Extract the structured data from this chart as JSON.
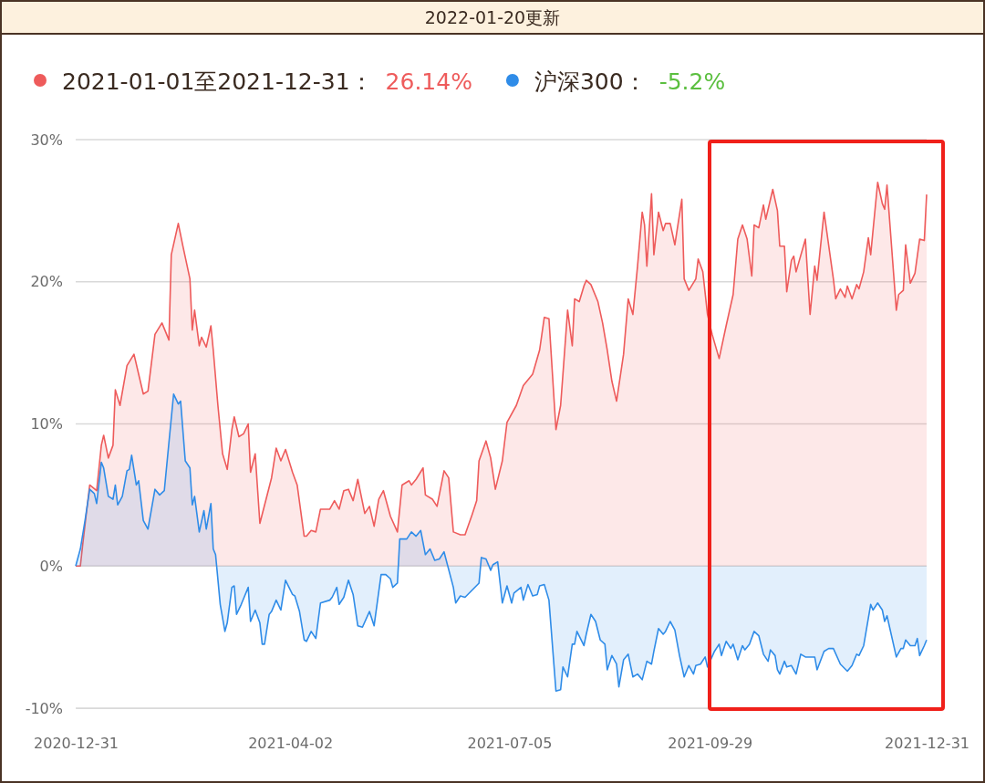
{
  "chart_data": {
    "type": "area",
    "title": "2022-01-20更新",
    "annotations": [
      "26.14%",
      "-5.2%"
    ],
    "xlim": [
      "2020-12-31",
      "2021-12-31"
    ],
    "xticks": [
      "2020-12-31",
      "2021-04-02",
      "2021-07-05",
      "2021-09-29",
      "2021-12-31"
    ],
    "ylim": [
      -10,
      30
    ],
    "yticks": [
      {
        "value": -10,
        "label": "-10%"
      },
      {
        "value": 0,
        "label": "0%"
      },
      {
        "value": 10,
        "label": "10%"
      },
      {
        "value": 20,
        "label": "20%"
      },
      {
        "value": 30,
        "label": "30%"
      }
    ],
    "grid": "y",
    "legend": "top left",
    "line_style": "solid",
    "series": [
      {
        "name": "2021-01-01至2021-12-31：",
        "color": "#ee5b5b",
        "x": [
          "2020-12-31",
          "2021-01-02",
          "2021-01-03",
          "2021-01-06",
          "2021-01-09",
          "2021-01-11",
          "2021-01-12",
          "2021-01-14",
          "2021-01-16",
          "2021-01-17",
          "2021-01-19",
          "2021-01-22",
          "2021-01-25",
          "2021-01-27",
          "2021-01-29",
          "2021-01-31",
          "2021-02-03",
          "2021-02-06",
          "2021-02-09",
          "2021-02-10",
          "2021-02-13",
          "2021-02-15",
          "2021-02-18",
          "2021-02-19",
          "2021-02-20",
          "2021-02-22",
          "2021-02-23",
          "2021-02-25",
          "2021-02-27",
          "2021-02-28",
          "2021-03-02",
          "2021-03-04",
          "2021-03-06",
          "2021-03-08",
          "2021-03-09",
          "2021-03-11",
          "2021-03-13",
          "2021-03-15",
          "2021-03-16",
          "2021-03-18",
          "2021-03-20",
          "2021-03-25",
          "2021-03-27",
          "2021-03-29",
          "2021-03-31",
          "2021-04-03",
          "2021-04-05",
          "2021-04-08",
          "2021-04-09",
          "2021-04-11",
          "2021-04-13",
          "2021-04-15",
          "2021-04-19",
          "2021-04-21",
          "2021-04-23",
          "2021-04-25",
          "2021-04-27",
          "2021-04-29",
          "2021-05-01",
          "2021-05-04",
          "2021-05-06",
          "2021-05-08",
          "2021-05-10",
          "2021-05-12",
          "2021-05-15",
          "2021-05-18",
          "2021-05-20",
          "2021-05-23",
          "2021-05-24",
          "2021-05-26",
          "2021-05-29",
          "2021-05-30",
          "2021-06-02",
          "2021-06-04",
          "2021-06-07",
          "2021-06-09",
          "2021-06-11",
          "2021-06-14",
          "2021-06-16",
          "2021-06-19",
          "2021-06-21",
          "2021-06-22",
          "2021-06-25",
          "2021-06-27",
          "2021-06-29",
          "2021-07-02",
          "2021-07-04",
          "2021-07-08",
          "2021-07-11",
          "2021-07-15",
          "2021-07-18",
          "2021-07-20",
          "2021-07-22",
          "2021-07-25",
          "2021-07-27",
          "2021-07-28",
          "2021-07-30",
          "2021-08-01",
          "2021-08-02",
          "2021-08-04",
          "2021-08-06",
          "2021-08-07",
          "2021-08-09",
          "2021-08-12",
          "2021-08-14",
          "2021-08-16",
          "2021-08-18",
          "2021-08-20",
          "2021-08-23",
          "2021-08-25",
          "2021-08-27",
          "2021-08-29",
          "2021-08-31",
          "2021-09-01",
          "2021-09-02",
          "2021-09-04",
          "2021-09-05",
          "2021-09-07",
          "2021-09-09",
          "2021-09-10",
          "2021-09-12",
          "2021-09-14",
          "2021-09-17",
          "2021-09-18",
          "2021-09-20",
          "2021-09-23",
          "2021-09-24",
          "2021-09-26",
          "2021-09-28",
          "2021-09-30",
          "2021-10-03",
          "2021-10-06",
          "2021-10-09",
          "2021-10-11",
          "2021-10-13",
          "2021-10-15",
          "2021-10-17",
          "2021-10-18",
          "2021-10-20",
          "2021-10-22",
          "2021-10-23",
          "2021-10-26",
          "2021-10-28",
          "2021-10-29",
          "2021-10-31",
          "2021-11-01",
          "2021-11-03",
          "2021-11-04",
          "2021-11-05",
          "2021-11-09",
          "2021-11-11",
          "2021-11-13",
          "2021-11-14",
          "2021-11-17",
          "2021-11-21",
          "2021-11-22",
          "2021-11-24",
          "2021-11-26",
          "2021-11-27",
          "2021-11-29",
          "2021-12-01",
          "2021-12-02",
          "2021-12-04",
          "2021-12-06",
          "2021-12-07",
          "2021-12-10",
          "2021-12-12",
          "2021-12-13",
          "2021-12-14",
          "2021-12-18",
          "2021-12-19",
          "2021-12-21",
          "2021-12-22",
          "2021-12-24",
          "2021-12-26",
          "2021-12-28",
          "2021-12-30",
          "2021-12-31"
        ],
        "values": [
          0,
          0,
          1.5,
          5.7,
          5.3,
          8.5,
          9.2,
          7.6,
          8.5,
          12.4,
          11.3,
          14.1,
          14.9,
          13.5,
          12.1,
          12.3,
          16.3,
          17.1,
          15.9,
          21.9,
          24.1,
          22.5,
          20.2,
          16.6,
          18.0,
          15.5,
          16.1,
          15.4,
          16.9,
          15.2,
          11.3,
          7.9,
          6.8,
          9.6,
          10.5,
          9.1,
          9.3,
          10.0,
          6.6,
          7.9,
          3.0,
          6.2,
          8.3,
          7.4,
          8.2,
          6.6,
          5.7,
          2.1,
          2.1,
          2.5,
          2.4,
          4.0,
          4.0,
          4.6,
          4.0,
          5.3,
          5.4,
          4.6,
          6.1,
          3.7,
          4.2,
          2.8,
          4.7,
          5.3,
          3.5,
          2.4,
          5.7,
          6.0,
          5.7,
          6.1,
          6.9,
          5.0,
          4.7,
          4.2,
          6.7,
          6.2,
          2.4,
          2.2,
          2.2,
          3.6,
          4.6,
          7.4,
          8.8,
          7.6,
          5.4,
          7.4,
          10.1,
          11.3,
          12.7,
          13.5,
          15.2,
          17.5,
          17.4,
          9.6,
          11.3,
          13.5,
          18.0,
          15.5,
          18.8,
          18.6,
          19.7,
          20.1,
          19.8,
          18.6,
          17.1,
          15.2,
          13.0,
          11.6,
          14.9,
          18.8,
          17.7,
          21.1,
          24.9,
          24.0,
          21.1,
          26.2,
          21.9,
          24.9,
          23.6,
          24.1,
          24.1,
          22.6,
          25.8,
          20.2,
          19.4,
          20.2,
          21.6,
          20.7,
          17.7,
          16.3,
          14.6,
          16.9,
          19.1,
          23.0,
          24.0,
          23.0,
          20.4,
          24.0,
          23.8,
          25.4,
          24.4,
          26.5,
          25.0,
          22.5,
          22.5,
          19.3,
          21.5,
          21.8,
          20.7,
          23.0,
          17.7,
          21.1,
          20.1,
          24.9,
          20.2,
          18.8,
          19.5,
          18.9,
          19.7,
          18.8,
          19.8,
          19.5,
          20.7,
          23.1,
          21.9,
          27.0,
          25.5,
          25.1,
          26.8,
          18.0,
          19.1,
          19.4,
          22.6,
          19.9,
          20.6,
          23.0,
          22.9,
          26.14
        ]
      },
      {
        "name": "沪深300：",
        "color": "#2f8ce8",
        "x": [
          "2020-12-31",
          "2021-01-02",
          "2021-01-04",
          "2021-01-06",
          "2021-01-08",
          "2021-01-09",
          "2021-01-11",
          "2021-01-12",
          "2021-01-14",
          "2021-01-16",
          "2021-01-17",
          "2021-01-18",
          "2021-01-20",
          "2021-01-22",
          "2021-01-23",
          "2021-01-24",
          "2021-01-26",
          "2021-01-27",
          "2021-01-29",
          "2021-01-31",
          "2021-02-03",
          "2021-02-05",
          "2021-02-07",
          "2021-02-11",
          "2021-02-13",
          "2021-02-14",
          "2021-02-16",
          "2021-02-18",
          "2021-02-19",
          "2021-02-20",
          "2021-02-22",
          "2021-02-24",
          "2021-02-25",
          "2021-02-27",
          "2021-02-28",
          "2021-03-01",
          "2021-03-03",
          "2021-03-05",
          "2021-03-06",
          "2021-03-08",
          "2021-03-09",
          "2021-03-10",
          "2021-03-12",
          "2021-03-15",
          "2021-03-16",
          "2021-03-18",
          "2021-03-20",
          "2021-03-21",
          "2021-03-22",
          "2021-03-24",
          "2021-03-25",
          "2021-03-27",
          "2021-03-29",
          "2021-03-31",
          "2021-04-03",
          "2021-04-04",
          "2021-04-06",
          "2021-04-08",
          "2021-04-09",
          "2021-04-11",
          "2021-04-13",
          "2021-04-15",
          "2021-04-19",
          "2021-04-20",
          "2021-04-22",
          "2021-04-23",
          "2021-04-25",
          "2021-04-27",
          "2021-04-29",
          "2021-05-01",
          "2021-05-03",
          "2021-05-06",
          "2021-05-08",
          "2021-05-11",
          "2021-05-13",
          "2021-05-15",
          "2021-05-16",
          "2021-05-18",
          "2021-05-19",
          "2021-05-22",
          "2021-05-24",
          "2021-05-26",
          "2021-05-28",
          "2021-05-30",
          "2021-06-01",
          "2021-06-03",
          "2021-06-05",
          "2021-06-07",
          "2021-06-11",
          "2021-06-12",
          "2021-06-14",
          "2021-06-16",
          "2021-06-19",
          "2021-06-22",
          "2021-06-23",
          "2021-06-25",
          "2021-06-27",
          "2021-06-28",
          "2021-06-30",
          "2021-07-02",
          "2021-07-04",
          "2021-07-06",
          "2021-07-07",
          "2021-07-10",
          "2021-07-11",
          "2021-07-13",
          "2021-07-15",
          "2021-07-17",
          "2021-07-18",
          "2021-07-20",
          "2021-07-22",
          "2021-07-25",
          "2021-07-27",
          "2021-07-28",
          "2021-07-30",
          "2021-08-01",
          "2021-08-02",
          "2021-08-03",
          "2021-08-06",
          "2021-08-07",
          "2021-08-09",
          "2021-08-11",
          "2021-08-13",
          "2021-08-15",
          "2021-08-16",
          "2021-08-18",
          "2021-08-20",
          "2021-08-21",
          "2021-08-23",
          "2021-08-25",
          "2021-08-27",
          "2021-08-29",
          "2021-08-31",
          "2021-09-02",
          "2021-09-04",
          "2021-09-05",
          "2021-09-07",
          "2021-09-09",
          "2021-09-10",
          "2021-09-12",
          "2021-09-14",
          "2021-09-16",
          "2021-09-18",
          "2021-09-20",
          "2021-09-22",
          "2021-09-23",
          "2021-09-25",
          "2021-09-27",
          "2021-09-28",
          "2021-10-01",
          "2021-10-03",
          "2021-10-04",
          "2021-10-06",
          "2021-10-08",
          "2021-10-09",
          "2021-10-11",
          "2021-10-13",
          "2021-10-14",
          "2021-10-16",
          "2021-10-18",
          "2021-10-20",
          "2021-10-22",
          "2021-10-24",
          "2021-10-25",
          "2021-10-27",
          "2021-10-28",
          "2021-10-29",
          "2021-10-31",
          "2021-11-01",
          "2021-11-03",
          "2021-11-05",
          "2021-11-07",
          "2021-11-09",
          "2021-11-13",
          "2021-11-14",
          "2021-11-17",
          "2021-11-19",
          "2021-11-21",
          "2021-11-24",
          "2021-11-27",
          "2021-11-29",
          "2021-12-01",
          "2021-12-02",
          "2021-12-04",
          "2021-12-07",
          "2021-12-08",
          "2021-12-10",
          "2021-12-12",
          "2021-12-13",
          "2021-12-14",
          "2021-12-18",
          "2021-12-20",
          "2021-12-21",
          "2021-12-22",
          "2021-12-24",
          "2021-12-26",
          "2021-12-27",
          "2021-12-28",
          "2021-12-30",
          "2021-12-31"
        ],
        "values": [
          0,
          1.2,
          3.2,
          5.4,
          5.1,
          4.4,
          7.3,
          6.9,
          4.9,
          4.7,
          5.7,
          4.3,
          4.9,
          6.7,
          6.8,
          7.8,
          5.7,
          6.0,
          3.2,
          2.6,
          5.4,
          5.0,
          5.3,
          12.1,
          11.4,
          11.6,
          7.4,
          6.9,
          4.3,
          4.9,
          2.4,
          3.9,
          2.6,
          4.4,
          1.2,
          0.8,
          -2.7,
          -4.6,
          -4.0,
          -1.5,
          -1.4,
          -3.4,
          -2.7,
          -1.5,
          -3.9,
          -3.1,
          -4.0,
          -5.5,
          -5.5,
          -3.4,
          -3.2,
          -2.4,
          -3.1,
          -1.0,
          -2.0,
          -2.1,
          -3.2,
          -5.2,
          -5.3,
          -4.6,
          -5.1,
          -2.6,
          -2.4,
          -2.2,
          -1.5,
          -2.7,
          -2.2,
          -1.0,
          -2.0,
          -4.2,
          -4.3,
          -3.2,
          -4.2,
          -0.6,
          -0.6,
          -0.9,
          -1.5,
          -1.2,
          1.9,
          1.9,
          2.4,
          2.1,
          2.5,
          0.8,
          1.2,
          0.4,
          0.5,
          1.0,
          -1.5,
          -2.6,
          -2.1,
          -2.2,
          -1.7,
          -1.2,
          0.6,
          0.5,
          -0.3,
          0.1,
          0.3,
          -2.6,
          -1.4,
          -2.6,
          -1.9,
          -1.5,
          -2.4,
          -1.3,
          -2.1,
          -2.0,
          -1.4,
          -1.3,
          -2.4,
          -8.8,
          -8.7,
          -7.1,
          -7.8,
          -5.5,
          -5.5,
          -4.6,
          -5.6,
          -4.8,
          -3.4,
          -3.9,
          -5.2,
          -5.5,
          -7.3,
          -6.3,
          -6.9,
          -8.5,
          -6.6,
          -6.2,
          -7.8,
          -7.6,
          -8.0,
          -6.7,
          -6.9,
          -6.0,
          -4.4,
          -4.8,
          -4.6,
          -3.9,
          -4.5,
          -6.3,
          -7.8,
          -7.0,
          -7.6,
          -7.0,
          -6.9,
          -6.4,
          -7.1,
          -6.0,
          -5.5,
          -6.3,
          -5.3,
          -5.8,
          -5.5,
          -6.6,
          -5.6,
          -5.9,
          -5.5,
          -4.6,
          -4.9,
          -6.2,
          -6.7,
          -5.9,
          -6.3,
          -7.3,
          -7.6,
          -6.7,
          -7.1,
          -7.0,
          -7.6,
          -6.2,
          -6.4,
          -6.4,
          -7.3,
          -6.0,
          -5.8,
          -5.8,
          -6.9,
          -7.4,
          -7.0,
          -6.2,
          -6.3,
          -5.6,
          -2.7,
          -3.1,
          -2.6,
          -3.1,
          -3.9,
          -3.5,
          -6.4,
          -5.8,
          -5.8,
          -5.2,
          -5.6,
          -5.6,
          -5.1,
          -6.3,
          -5.6,
          -5.2
        ]
      }
    ]
  }
}
